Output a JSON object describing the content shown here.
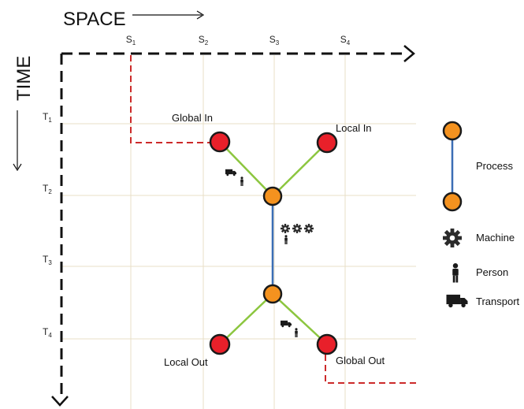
{
  "axes": {
    "space_title": "SPACE",
    "time_title": "TIME",
    "space_ticks": [
      {
        "letter": "S",
        "sub": "1"
      },
      {
        "letter": "S",
        "sub": "2"
      },
      {
        "letter": "S",
        "sub": "3"
      },
      {
        "letter": "S",
        "sub": "4"
      }
    ],
    "time_ticks": [
      {
        "letter": "T",
        "sub": "1"
      },
      {
        "letter": "T",
        "sub": "2"
      },
      {
        "letter": "T",
        "sub": "3"
      },
      {
        "letter": "T",
        "sub": "4"
      }
    ]
  },
  "nodes": {
    "global_in": "Global In",
    "local_in": "Local In",
    "local_out": "Local Out",
    "global_out": "Global Out"
  },
  "legend": {
    "process": "Process",
    "machine": "Machine",
    "person": "Person",
    "transport": "Transport"
  },
  "icons": [
    "truck-icon",
    "person-icon",
    "gear-icon"
  ],
  "colors": {
    "red_node": "#e8202a",
    "orange_node": "#f4921f",
    "green_edge": "#8cc63f",
    "blue_edge": "#3b6eb5",
    "red_dash": "#cc2a2a",
    "grid": "#e9dfc7",
    "axis": "#111111"
  }
}
